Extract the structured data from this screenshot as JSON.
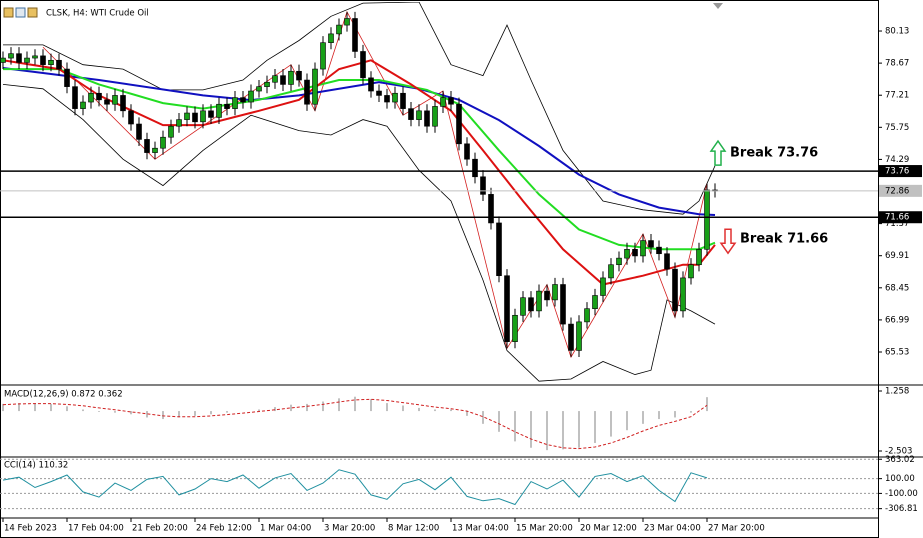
{
  "chart_data": [
    {
      "type": "candlestick",
      "title": "CLSK, H4:  WTI Crude Oil",
      "up_color": "#18a018",
      "down_color": "#000000",
      "open": [
        78.7,
        78.9,
        79.1,
        78.7,
        78.9,
        79.0,
        78.6,
        78.8,
        78.4,
        77.6,
        76.6,
        76.9,
        77.3,
        77.0,
        76.8,
        77.2,
        76.5,
        75.9,
        75.2,
        74.6,
        74.8,
        75.3,
        75.8,
        76.1,
        76.4,
        76.0,
        76.5,
        76.2,
        76.8,
        76.6,
        77.1,
        76.9,
        77.4,
        77.6,
        77.8,
        78.1,
        77.7,
        78.3,
        77.9,
        76.8,
        78.4,
        79.6,
        80.0,
        80.4,
        80.7,
        79.2,
        78.0,
        77.4,
        77.2,
        76.9,
        77.3,
        76.6,
        76.1,
        76.5,
        75.8,
        76.7,
        77.1,
        76.8,
        75.0,
        74.3,
        73.5,
        72.7,
        71.4,
        69.0,
        66.0,
        67.2,
        68.0,
        67.4,
        68.3,
        67.9,
        68.6,
        66.8,
        65.6,
        66.9,
        67.5,
        68.1,
        68.9,
        69.5,
        69.8,
        70.2,
        69.9,
        70.6,
        70.3,
        70.0,
        69.3,
        67.4,
        68.9,
        69.5,
        70.2,
        72.9
      ],
      "high": [
        79.2,
        79.4,
        79.4,
        79.2,
        79.3,
        79.3,
        79.1,
        79.1,
        78.7,
        77.9,
        77.2,
        77.6,
        77.6,
        77.3,
        77.5,
        77.5,
        76.8,
        76.2,
        75.5,
        75.1,
        75.6,
        76.1,
        76.4,
        76.7,
        76.7,
        76.8,
        76.8,
        77.1,
        77.1,
        77.4,
        77.4,
        77.7,
        77.9,
        78.1,
        78.4,
        78.4,
        78.6,
        78.6,
        78.2,
        78.7,
        79.9,
        80.3,
        80.7,
        81.0,
        81.0,
        79.5,
        78.3,
        77.7,
        77.5,
        77.6,
        77.6,
        76.9,
        76.8,
        76.8,
        77.0,
        77.4,
        77.4,
        77.1,
        75.3,
        74.6,
        73.8,
        73.0,
        71.7,
        69.3,
        67.5,
        68.3,
        68.3,
        68.6,
        68.6,
        68.9,
        68.9,
        67.1,
        67.2,
        67.8,
        68.4,
        69.2,
        69.8,
        70.1,
        70.5,
        70.5,
        70.9,
        70.9,
        70.6,
        70.3,
        69.6,
        69.2,
        69.8,
        70.5,
        73.2,
        73.2
      ],
      "low": [
        78.4,
        78.6,
        78.4,
        78.4,
        78.6,
        78.3,
        78.3,
        78.1,
        77.3,
        76.3,
        76.3,
        76.6,
        76.7,
        76.5,
        76.5,
        76.2,
        75.6,
        74.9,
        74.3,
        74.3,
        74.5,
        75.0,
        75.5,
        75.8,
        75.7,
        75.7,
        75.9,
        75.9,
        76.3,
        76.3,
        76.6,
        76.6,
        77.1,
        77.3,
        77.5,
        77.4,
        77.4,
        77.6,
        76.5,
        76.5,
        78.1,
        79.3,
        79.7,
        80.1,
        78.9,
        77.7,
        77.1,
        76.9,
        76.6,
        76.6,
        76.3,
        75.8,
        75.8,
        75.5,
        75.5,
        76.4,
        76.5,
        74.7,
        74.0,
        73.2,
        72.4,
        71.1,
        68.7,
        65.7,
        65.7,
        66.9,
        67.1,
        67.1,
        67.6,
        67.6,
        66.5,
        65.3,
        65.3,
        66.6,
        67.2,
        67.8,
        68.6,
        69.2,
        69.5,
        69.6,
        69.6,
        70.0,
        69.7,
        69.0,
        67.1,
        67.1,
        68.6,
        69.2,
        69.9,
        72.56
      ],
      "close": [
        78.9,
        79.1,
        78.7,
        78.9,
        79.0,
        78.6,
        78.8,
        78.4,
        77.6,
        76.6,
        76.9,
        77.3,
        77.0,
        76.8,
        77.2,
        76.5,
        75.9,
        75.2,
        74.6,
        74.8,
        75.3,
        75.8,
        76.1,
        76.4,
        76.0,
        76.5,
        76.2,
        76.8,
        76.6,
        77.1,
        76.9,
        77.4,
        77.6,
        77.8,
        78.1,
        77.7,
        78.3,
        77.9,
        76.8,
        78.4,
        79.6,
        80.0,
        80.4,
        80.7,
        79.2,
        78.0,
        77.4,
        77.2,
        76.9,
        77.3,
        76.6,
        76.1,
        76.5,
        75.8,
        76.7,
        77.1,
        76.8,
        75.0,
        74.3,
        73.5,
        72.7,
        71.4,
        69.0,
        66.0,
        67.2,
        68.0,
        67.4,
        68.3,
        67.9,
        68.6,
        66.8,
        65.6,
        66.9,
        67.5,
        68.1,
        68.9,
        69.5,
        69.8,
        70.2,
        69.9,
        70.6,
        70.3,
        70.0,
        69.3,
        67.4,
        68.9,
        69.5,
        70.2,
        72.9,
        72.86
      ],
      "overlays": [
        {
          "color": "#000000",
          "width": 0.8,
          "x": [
            0,
            5,
            10,
            15,
            20,
            25,
            30,
            33,
            37,
            41,
            45,
            52,
            56,
            60,
            63,
            66,
            70,
            75,
            80,
            85,
            87,
            89
          ],
          "values": [
            79.5,
            79.5,
            78.6,
            78.4,
            77.45,
            77.45,
            77.9,
            78.8,
            79.7,
            80.8,
            81.4,
            81.45,
            78.6,
            78.1,
            80.4,
            77.9,
            74.7,
            72.4,
            72.0,
            71.8,
            72.4,
            74.0
          ]
        },
        {
          "color": "#000000",
          "width": 0.8,
          "x": [
            0,
            5,
            10,
            15,
            20,
            25,
            31,
            37,
            41,
            45,
            48,
            52,
            56,
            60,
            63,
            67,
            71,
            75,
            79,
            81,
            83,
            86,
            89
          ],
          "values": [
            77.7,
            77.5,
            76.1,
            74.3,
            73.1,
            74.7,
            76.3,
            75.6,
            75.4,
            76.1,
            75.8,
            73.8,
            72.4,
            68.8,
            65.6,
            64.2,
            64.3,
            65.1,
            64.5,
            64.7,
            67.9,
            67.4,
            66.8
          ]
        },
        {
          "color": "#d42020",
          "width": 0.8,
          "x": [
            5,
            19,
            36,
            39,
            43,
            50,
            55,
            63,
            68,
            71,
            80,
            84,
            88
          ],
          "values": [
            79.4,
            74.3,
            78.6,
            76.5,
            81.0,
            76.3,
            77.4,
            65.7,
            68.6,
            65.3,
            70.9,
            67.1,
            73.2
          ]
        },
        {
          "color": "#1010c0",
          "width": 2,
          "x": [
            0,
            12,
            25,
            31,
            37,
            47,
            52,
            57,
            62,
            67,
            72,
            77,
            82,
            87,
            89
          ],
          "values": [
            78.45,
            77.9,
            77.2,
            76.99,
            77.2,
            77.8,
            77.5,
            77.0,
            76.08,
            74.9,
            73.6,
            72.7,
            72.1,
            71.8,
            71.76
          ]
        },
        {
          "color": "#22dd22",
          "width": 2,
          "x": [
            0,
            7,
            12,
            20,
            25,
            32,
            37,
            42,
            47,
            53,
            57,
            62,
            67,
            72,
            77,
            82,
            87,
            89
          ],
          "values": [
            78.4,
            78.4,
            77.7,
            76.85,
            76.6,
            77.0,
            77.45,
            77.9,
            77.9,
            77.45,
            76.8,
            74.7,
            72.7,
            71.1,
            70.4,
            70.2,
            70.2,
            70.5
          ]
        },
        {
          "color": "#dd1111",
          "width": 2,
          "x": [
            0,
            7,
            12,
            20,
            25,
            32,
            37,
            42,
            46,
            51,
            56,
            60,
            65,
            70,
            75,
            80,
            85,
            87,
            89
          ],
          "values": [
            78.8,
            78.4,
            77.2,
            75.85,
            75.85,
            76.5,
            77.0,
            78.4,
            78.8,
            77.7,
            76.5,
            74.7,
            72.4,
            70.2,
            68.6,
            69.0,
            69.5,
            69.5,
            70.4
          ]
        }
      ],
      "levels": [
        {
          "value": 73.76,
          "color": "#000000",
          "annotation": "Break 73.76",
          "arrow": "up",
          "arrow_color": "#22b14c"
        },
        {
          "value": 72.86,
          "color": "#c0c0c0"
        },
        {
          "value": 71.66,
          "color": "#000000",
          "annotation": "Break 71.66",
          "arrow": "down",
          "arrow_color": "#e03030"
        }
      ],
      "xlim": [
        -0.375,
        109.375
      ],
      "ylim": [
        64.12,
        81.45
      ],
      "yticks": [
        80.13,
        78.67,
        77.21,
        75.75,
        74.29,
        71.37,
        69.91,
        68.45,
        66.99,
        65.53
      ]
    },
    {
      "type": "macd",
      "title": "MACD(12,26,9) 0.872 0.362",
      "color": "#c0c0c0",
      "signal_color": "#d02020",
      "x": [
        0,
        2,
        4,
        6,
        8,
        10,
        12,
        14,
        16,
        18,
        20,
        22,
        24,
        26,
        28,
        30,
        32,
        34,
        36,
        38,
        40,
        42,
        44,
        46,
        48,
        50,
        52,
        54,
        56,
        58,
        60,
        62,
        64,
        66,
        68,
        70,
        72,
        74,
        76,
        78,
        80,
        82,
        84,
        86,
        88
      ],
      "values": [
        0.45,
        0.5,
        0.5,
        0.45,
        0.3,
        0.1,
        -0.05,
        -0.1,
        -0.2,
        -0.4,
        -0.5,
        -0.4,
        -0.3,
        -0.2,
        -0.1,
        0.0,
        0.1,
        0.25,
        0.4,
        0.45,
        0.6,
        0.8,
        0.9,
        0.75,
        0.5,
        0.35,
        0.2,
        0.1,
        0.1,
        -0.3,
        -0.8,
        -1.3,
        -1.9,
        -2.3,
        -2.45,
        -2.4,
        -2.3,
        -2.0,
        -1.6,
        -1.2,
        -0.8,
        -0.5,
        -0.4,
        -0.1,
        0.872
      ],
      "signal": [
        0.4,
        0.45,
        0.47,
        0.47,
        0.42,
        0.33,
        0.2,
        0.08,
        -0.05,
        -0.17,
        -0.3,
        -0.36,
        -0.36,
        -0.3,
        -0.22,
        -0.13,
        -0.03,
        0.08,
        0.2,
        0.3,
        0.42,
        0.57,
        0.7,
        0.74,
        0.66,
        0.53,
        0.39,
        0.25,
        0.15,
        0.0,
        -0.35,
        -0.8,
        -1.3,
        -1.75,
        -2.1,
        -2.3,
        -2.35,
        -2.25,
        -2.0,
        -1.65,
        -1.25,
        -0.9,
        -0.65,
        -0.35,
        0.362
      ],
      "xlim": [
        -0.375,
        109.375
      ],
      "ylim": [
        -2.754,
        1.509
      ],
      "yticks": [
        1.258,
        -2.503
      ]
    },
    {
      "type": "line",
      "title": "CCI(14) 110.32",
      "color": "#2090a0",
      "x": [
        0,
        2,
        4,
        6,
        8,
        10,
        12,
        14,
        16,
        18,
        20,
        22,
        24,
        26,
        28,
        30,
        32,
        34,
        36,
        38,
        40,
        42,
        44,
        46,
        48,
        50,
        52,
        54,
        56,
        58,
        60,
        62,
        64,
        66,
        68,
        70,
        72,
        74,
        76,
        78,
        80,
        82,
        84,
        86,
        88
      ],
      "values": [
        80,
        120,
        -20,
        60,
        150,
        -80,
        -150,
        40,
        -60,
        90,
        130,
        -120,
        -40,
        100,
        60,
        150,
        -30,
        110,
        170,
        -60,
        40,
        220,
        160,
        -120,
        -180,
        30,
        90,
        -50,
        120,
        -140,
        -200,
        -170,
        -250,
        60,
        -40,
        80,
        -150,
        130,
        170,
        60,
        140,
        -60,
        -210,
        180,
        110.32
      ],
      "xlim": [
        -0.375,
        109.375
      ],
      "ylim": [
        -420,
        380
      ],
      "yticks": [
        363.02,
        {
          "value": 100,
          "label": "100.00"
        },
        {
          "value": -100,
          "label": "-100.00"
        },
        -306.81
      ],
      "xticks": [
        {
          "value": 0,
          "label": "14 Feb 2023"
        },
        {
          "value": 8,
          "label": "17 Feb 04:00"
        },
        {
          "value": 16,
          "label": "21 Feb 20:00"
        },
        {
          "value": 24,
          "label": "24 Feb 12:00"
        },
        {
          "value": 32,
          "label": "1 Mar 04:00"
        },
        {
          "value": 40,
          "label": "3 Mar 20:00"
        },
        {
          "value": 48,
          "label": "8 Mar 12:00"
        },
        {
          "value": 56,
          "label": "13 Mar 04:00"
        },
        {
          "value": 64,
          "label": "15 Mar 20:00"
        },
        {
          "value": 72,
          "label": "20 Mar 12:00"
        },
        {
          "value": 80,
          "label": "23 Mar 04:00"
        },
        {
          "value": 88,
          "label": "27 Mar 20:00"
        }
      ]
    }
  ]
}
